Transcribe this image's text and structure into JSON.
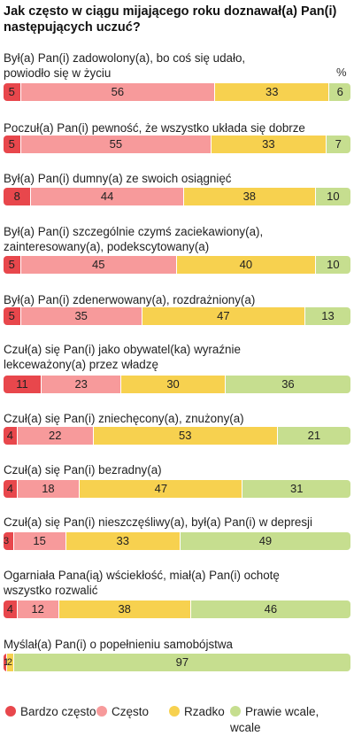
{
  "chart_data": {
    "type": "bar",
    "orientation": "horizontal-stacked-100",
    "title": "Jak często w ciągu mijającego roku doznawał(a) Pan(i)\n następujących uczuć?",
    "percent_symbol": "%",
    "categories": [
      "Był(a) Pan(i) zadowolony(a), bo coś się udało,\npowiodło się w życiu",
      "Poczuł(a) Pan(i) pewność, że wszystko układa się dobrze",
      "Był(a) Pan(i) dumny(a) ze swoich osiągnięć",
      "Był(a) Pan(i) szczególnie czymś zaciekawiony(a),\nzainteresowany(a), podekscytowany(a)",
      "Był(a) Pan(i) zdenerwowany(a), rozdrażniony(a)",
      "Czuł(a) się Pan(i) jako obywatel(ka) wyraźnie\nlekceważony(a) przez władzę",
      "Czuł(a) się Pan(i) zniechęcony(a), znużony(a)",
      "Czuł(a) się Pan(i) bezradny(a)",
      "Czuł(a) się Pan(i) nieszczęśliwy(a), był(a) Pan(i) w depresji",
      "Ogarniała Pana(ią) wściekłość, miał(a) Pan(i) ochotę\nwszystko rozwalić",
      "Myślał(a) Pan(i) o popełnieniu samobójstwa"
    ],
    "series": [
      {
        "name": "Bardzo często",
        "color": "#e8474c",
        "values": [
          5,
          5,
          8,
          5,
          5,
          11,
          4,
          4,
          3,
          4,
          1
        ]
      },
      {
        "name": "Często",
        "color": "#f79a9b",
        "values": [
          56,
          55,
          44,
          45,
          35,
          23,
          22,
          18,
          15,
          12,
          0
        ]
      },
      {
        "name": "Rzadko",
        "color": "#f7d14f",
        "values": [
          33,
          33,
          38,
          40,
          47,
          30,
          53,
          47,
          33,
          38,
          2
        ]
      },
      {
        "name": "Prawie wcale, wcale",
        "color": "#c6de8f",
        "values": [
          6,
          7,
          10,
          10,
          13,
          36,
          21,
          31,
          49,
          46,
          97
        ]
      }
    ],
    "xlim": [
      0,
      100
    ],
    "grid": false,
    "legend_position": "bottom"
  }
}
